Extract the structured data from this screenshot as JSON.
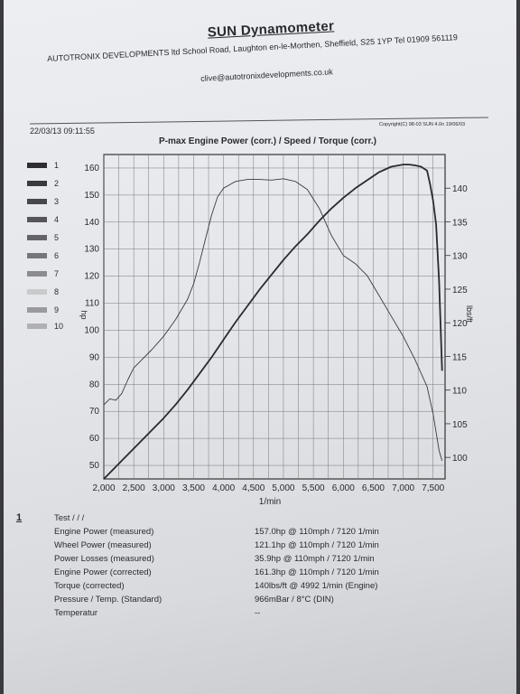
{
  "header": {
    "title": "SUN Dynamometer",
    "company_line": "AUTOTRONIX DEVELOPMENTS ltd School Road, Laughton en-le-Morthen, Sheffield, S25 1YP  Tel 01909 561119",
    "email": "clive@autotronixdevelopments.co.uk",
    "date_time": "22/03/13 09:11:55",
    "copyright": "Copyright(C) 98-03 SUN 4.0n 19/06/03"
  },
  "legend": {
    "items": [
      {
        "label": "1",
        "color": "#2e2e32"
      },
      {
        "label": "2",
        "color": "#3a3a3e"
      },
      {
        "label": "3",
        "color": "#48484c"
      },
      {
        "label": "4",
        "color": "#56565a"
      },
      {
        "label": "5",
        "color": "#646468"
      },
      {
        "label": "6",
        "color": "#76767a"
      },
      {
        "label": "7",
        "color": "#8c8c90"
      },
      {
        "label": "8",
        "color": "#c8cacc"
      },
      {
        "label": "9",
        "color": "#9a9a9e"
      },
      {
        "label": "10",
        "color": "#b0b0b4"
      }
    ]
  },
  "chart_data": {
    "type": "line",
    "title": "P-max Engine Power  (corr.) / Speed / Torque (corr.)",
    "xlabel": "1/min",
    "ylabel": "hp",
    "y2label": "lbs/ft",
    "xlim": [
      2000,
      7700
    ],
    "ylim": [
      45,
      165
    ],
    "y2lim": [
      96.8,
      145
    ],
    "x_ticks": [
      "2,000",
      "2,500",
      "3,000",
      "3,500",
      "4,000",
      "4,500",
      "5,000",
      "5,500",
      "6,000",
      "6,500",
      "7,000",
      "7,500"
    ],
    "x_tick_values": [
      2000,
      2500,
      3000,
      3500,
      4000,
      4500,
      5000,
      5500,
      6000,
      6500,
      7000,
      7500
    ],
    "y_ticks": [
      50,
      60,
      70,
      80,
      90,
      100,
      110,
      120,
      130,
      140,
      150,
      160
    ],
    "y2_ticks": [
      100,
      105,
      110,
      115,
      120,
      125,
      130,
      135,
      140
    ],
    "grid": true,
    "series": [
      {
        "axis": "right",
        "x": [
          2000,
          2100,
          2200,
          2300,
          2400,
          2500,
          2600,
          2800,
          3000,
          3200,
          3400,
          3500,
          3600,
          3700,
          3800,
          3900,
          4000,
          4200,
          4400,
          4600,
          4800,
          5000,
          5200,
          5400,
          5600,
          5800,
          6000,
          6200,
          6400,
          6600,
          6800,
          7000,
          7200,
          7400,
          7500,
          7600,
          7650
        ],
        "values": [
          107.8,
          108.7,
          108.5,
          109.5,
          111.5,
          113.3,
          114.2,
          116.0,
          118.0,
          120.5,
          123.5,
          125.8,
          129.0,
          132.5,
          136.0,
          138.7,
          140.0,
          141.0,
          141.3,
          141.3,
          141.2,
          141.4,
          141.0,
          139.8,
          137.0,
          133.0,
          130.0,
          128.8,
          127.0,
          124.0,
          121.0,
          118.0,
          114.5,
          110.5,
          106.5,
          101.0,
          99.5
        ]
      },
      {
        "axis": "left",
        "x": [
          2000,
          2200,
          2400,
          2600,
          2800,
          3000,
          3200,
          3400,
          3600,
          3800,
          4000,
          4200,
          4400,
          4600,
          4800,
          5000,
          5200,
          5400,
          5600,
          5800,
          6000,
          6200,
          6400,
          6600,
          6800,
          7000,
          7100,
          7200,
          7300,
          7400,
          7450,
          7500,
          7550,
          7600,
          7650
        ],
        "values": [
          45,
          49.5,
          54,
          58.5,
          63,
          67.5,
          72.5,
          78,
          84,
          90,
          96.5,
          103,
          109,
          115,
          120.5,
          126,
          131,
          135.5,
          140.5,
          145,
          149,
          152.5,
          155.5,
          158.5,
          160.5,
          161.3,
          161.3,
          161.0,
          160.5,
          159.0,
          154.0,
          148.0,
          139.0,
          118.0,
          85.0
        ]
      }
    ]
  },
  "results": {
    "test_number": "1",
    "rows": [
      {
        "label": "Test  /  /  /",
        "value": ""
      },
      {
        "label": "Engine Power (measured)",
        "value": "157.0hp @ 110mph / 7120 1/min"
      },
      {
        "label": "Wheel Power (measured)",
        "value": "121.1hp @ 110mph / 7120 1/min"
      },
      {
        "label": "Power Losses (measured)",
        "value": "35.9hp @ 110mph / 7120 1/min"
      },
      {
        "label": "Engine Power (corrected)",
        "value": "161.3hp @ 110mph / 7120 1/min"
      },
      {
        "label": "Torque (corrected)",
        "value": "140lbs/ft @ 4992 1/min (Engine)"
      },
      {
        "label": "Pressure / Temp. (Standard)",
        "value": "966mBar / 8°C (DIN)"
      },
      {
        "label": "Temperatur",
        "value": "--"
      }
    ]
  }
}
